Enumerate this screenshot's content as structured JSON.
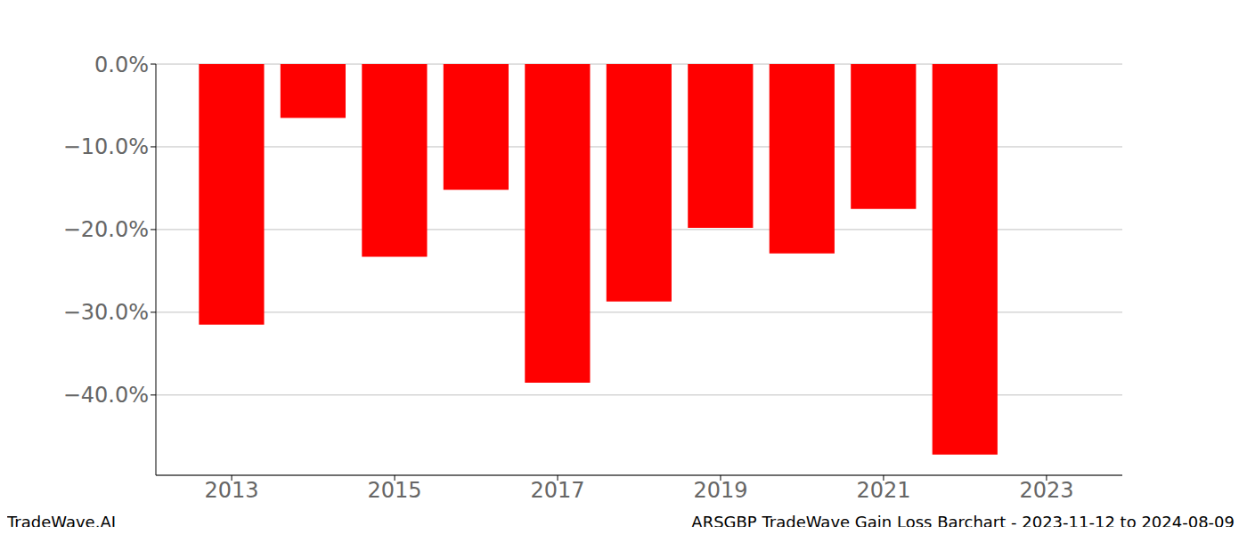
{
  "chart_data": {
    "type": "bar",
    "title": "ARSGBP TradeWave Gain Loss Barchart - 2023-11-12 to 2024-08-09",
    "source": "TradeWave.AI",
    "x": [
      2013,
      2014,
      2015,
      2016,
      2017,
      2018,
      2019,
      2020,
      2021,
      2022
    ],
    "values": [
      -31.5,
      -6.5,
      -23.3,
      -15.2,
      -38.5,
      -28.7,
      -19.8,
      -22.9,
      -17.5,
      -47.2
    ],
    "color": "#ff0000",
    "xlim": [
      2012.07,
      2023.93
    ],
    "xticks": [
      2013,
      2015,
      2017,
      2019,
      2021,
      2023
    ],
    "ylim": [
      -49.7,
      0
    ],
    "yticks": [
      {
        "value": 0,
        "label": "0.0%"
      },
      {
        "value": -10,
        "label": "−10.0%"
      },
      {
        "value": -20,
        "label": "−20.0%"
      },
      {
        "value": -30,
        "label": "−30.0%"
      },
      {
        "value": -40,
        "label": "−40.0%"
      }
    ],
    "grid": true
  }
}
